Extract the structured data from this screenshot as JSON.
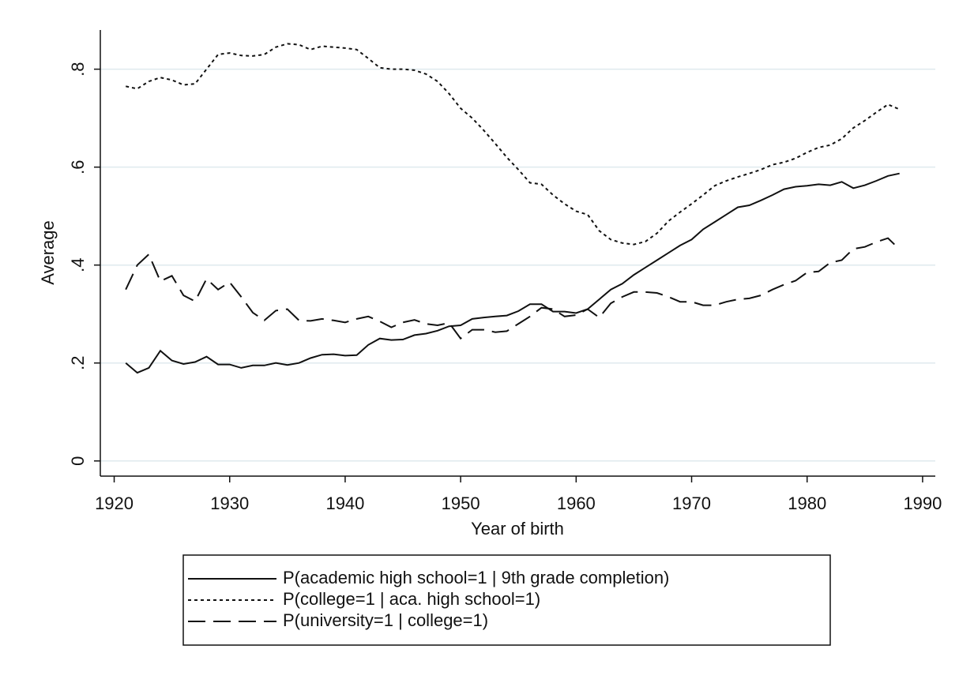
{
  "chart_data": {
    "type": "line",
    "x_label": "Year of birth",
    "y_label": "Average",
    "x": [
      1921,
      1922,
      1923,
      1924,
      1925,
      1926,
      1927,
      1928,
      1929,
      1930,
      1931,
      1932,
      1933,
      1934,
      1935,
      1936,
      1937,
      1938,
      1939,
      1940,
      1941,
      1942,
      1943,
      1944,
      1945,
      1946,
      1947,
      1948,
      1949,
      1950,
      1951,
      1952,
      1953,
      1954,
      1955,
      1956,
      1957,
      1958,
      1959,
      1960,
      1961,
      1962,
      1963,
      1964,
      1965,
      1966,
      1967,
      1968,
      1969,
      1970,
      1971,
      1972,
      1973,
      1974,
      1975,
      1976,
      1977,
      1978,
      1979,
      1980,
      1981,
      1982,
      1983,
      1984,
      1985,
      1986,
      1987,
      1988
    ],
    "series": [
      {
        "name": "P(academic high school=1 | 9th grade completion)",
        "color": "#111111",
        "style": "solid",
        "values": [
          0.2,
          0.18,
          0.19,
          0.225,
          0.205,
          0.198,
          0.202,
          0.213,
          0.197,
          0.197,
          0.19,
          0.195,
          0.195,
          0.2,
          0.196,
          0.2,
          0.21,
          0.217,
          0.218,
          0.215,
          0.216,
          0.237,
          0.25,
          0.247,
          0.248,
          0.257,
          0.26,
          0.266,
          0.275,
          0.277,
          0.29,
          0.293,
          0.295,
          0.297,
          0.306,
          0.32,
          0.32,
          0.305,
          0.305,
          0.302,
          0.31,
          0.33,
          0.35,
          0.362,
          0.38,
          0.395,
          0.41,
          0.425,
          0.44,
          0.452,
          0.473,
          0.488,
          0.503,
          0.518,
          0.522,
          0.532,
          0.543,
          0.555,
          0.56,
          0.562,
          0.565,
          0.563,
          0.57,
          0.557,
          0.563,
          0.572,
          0.582,
          0.587
        ]
      },
      {
        "name": "P(college=1 | aca. high school=1)",
        "color": "#111111",
        "style": "short-dash",
        "values": [
          0.765,
          0.76,
          0.775,
          0.783,
          0.778,
          0.768,
          0.77,
          0.8,
          0.83,
          0.833,
          0.828,
          0.827,
          0.83,
          0.845,
          0.852,
          0.85,
          0.84,
          0.847,
          0.845,
          0.843,
          0.84,
          0.822,
          0.803,
          0.8,
          0.8,
          0.798,
          0.79,
          0.775,
          0.75,
          0.72,
          0.7,
          0.675,
          0.648,
          0.62,
          0.595,
          0.568,
          0.565,
          0.543,
          0.525,
          0.51,
          0.503,
          0.47,
          0.452,
          0.445,
          0.442,
          0.448,
          0.465,
          0.49,
          0.508,
          0.525,
          0.543,
          0.562,
          0.572,
          0.58,
          0.587,
          0.595,
          0.605,
          0.61,
          0.618,
          0.63,
          0.64,
          0.645,
          0.658,
          0.68,
          0.695,
          0.712,
          0.728,
          0.718
        ]
      },
      {
        "name": "P(university=1 | college=1)",
        "color": "#111111",
        "style": "long-dash",
        "values": [
          0.35,
          0.4,
          0.422,
          0.367,
          0.378,
          0.338,
          0.326,
          0.372,
          0.35,
          0.365,
          0.335,
          0.303,
          0.287,
          0.307,
          0.31,
          0.287,
          0.286,
          0.29,
          0.287,
          0.283,
          0.29,
          0.295,
          0.285,
          0.273,
          0.283,
          0.288,
          0.28,
          0.277,
          0.282,
          0.25,
          0.268,
          0.268,
          0.263,
          0.265,
          0.28,
          0.295,
          0.313,
          0.31,
          0.295,
          0.298,
          0.31,
          0.293,
          0.322,
          0.335,
          0.345,
          0.345,
          0.343,
          0.335,
          0.325,
          0.325,
          0.318,
          0.318,
          0.325,
          0.33,
          0.332,
          0.338,
          0.35,
          0.36,
          0.368,
          0.385,
          0.387,
          0.405,
          0.41,
          0.433,
          0.437,
          0.447,
          0.455,
          0.432
        ]
      }
    ],
    "xlim": [
      1918.8,
      1991.1
    ],
    "xticks": [
      1920,
      1930,
      1940,
      1950,
      1960,
      1970,
      1980,
      1990
    ],
    "ylim": [
      -0.031,
      0.88
    ],
    "yticks": [
      0,
      {
        "value": 0.2,
        "label": ".2"
      },
      {
        "value": 0.4,
        "label": ".4"
      },
      {
        "value": 0.6,
        "label": ".6"
      },
      {
        "value": 0.8,
        "label": ".8"
      }
    ],
    "grid": true,
    "grid_color": "#dfeaee",
    "legend": "bottom"
  }
}
